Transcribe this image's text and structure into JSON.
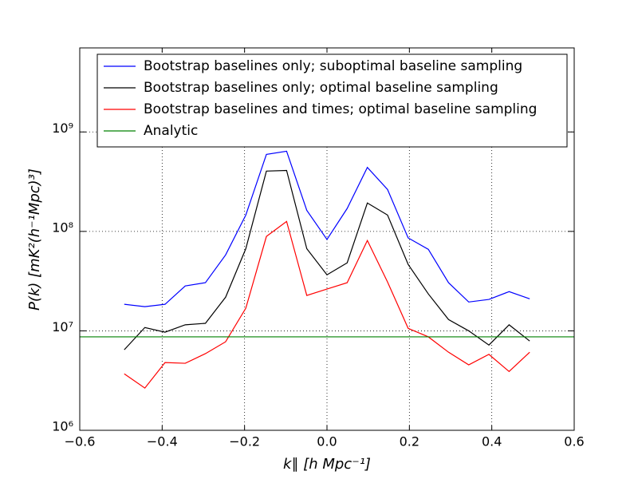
{
  "chart_data": {
    "type": "line",
    "xlabel": "k∥ [h Mpc⁻¹]",
    "ylabel": "P(k) [mK²(h⁻¹Mpc)³]",
    "yscale": "log",
    "grid": true,
    "legend": "upper center",
    "x": [
      -0.492,
      -0.442,
      -0.393,
      -0.344,
      -0.295,
      -0.246,
      -0.197,
      -0.147,
      -0.098,
      -0.049,
      0,
      0.049,
      0.098,
      0.147,
      0.197,
      0.246,
      0.295,
      0.344,
      0.393,
      0.442,
      0.492
    ],
    "xlim": [
      -0.6,
      0.6
    ],
    "xticks": [
      {
        "value": -0.6,
        "label": "−0.6"
      },
      {
        "value": -0.4,
        "label": "−0.4"
      },
      {
        "value": -0.2,
        "label": "−0.2"
      },
      {
        "value": 0,
        "label": "0.0"
      },
      0.2,
      0.4,
      0.6
    ],
    "ylim": [
      1000000,
      7000000000
    ],
    "yticks": [
      {
        "value": 1000000,
        "label": "10⁶"
      },
      {
        "value": 10000000,
        "label": "10⁷"
      },
      {
        "value": 100000000,
        "label": "10⁸"
      },
      {
        "value": 1000000000,
        "label": "10⁹"
      }
    ],
    "series": [
      {
        "name": "Bootstrap baselines only; suboptimal baseline sampling",
        "color": "#0000ff",
        "values": [
          18500000,
          17500000,
          18500000,
          28300000,
          30500000,
          58000000,
          146000000,
          595000000,
          640000000,
          163000000,
          83000000,
          170000000,
          440000000,
          264000000,
          86000000,
          66000000,
          30500000,
          19500000,
          20700000,
          24800000,
          21000000
        ]
      },
      {
        "name": "Bootstrap baselines only; optimal baseline sampling",
        "color": "#000000",
        "values": [
          6450000,
          10800000,
          9700000,
          11500000,
          11900000,
          21800000,
          67000000,
          404000000,
          410000000,
          67000000,
          36600000,
          48300000,
          193000000,
          146000000,
          46600000,
          23500000,
          13000000,
          10000000,
          7200000,
          11500000,
          7900000
        ]
      },
      {
        "name": "Bootstrap baselines and times; optimal baseline sampling",
        "color": "#ff0000",
        "values": [
          3700000,
          2660000,
          4800000,
          4720000,
          5900000,
          7770000,
          16900000,
          89000000,
          126000000,
          22700000,
          26300000,
          30500000,
          81000000,
          31000000,
          10600000,
          8700000,
          6100000,
          4550000,
          5800000,
          3900000,
          6100000
        ]
      },
      {
        "name": "Analytic",
        "color": "#008000",
        "x": [
          -0.6,
          0.6
        ],
        "values": [
          8700000,
          8700000
        ]
      }
    ]
  }
}
